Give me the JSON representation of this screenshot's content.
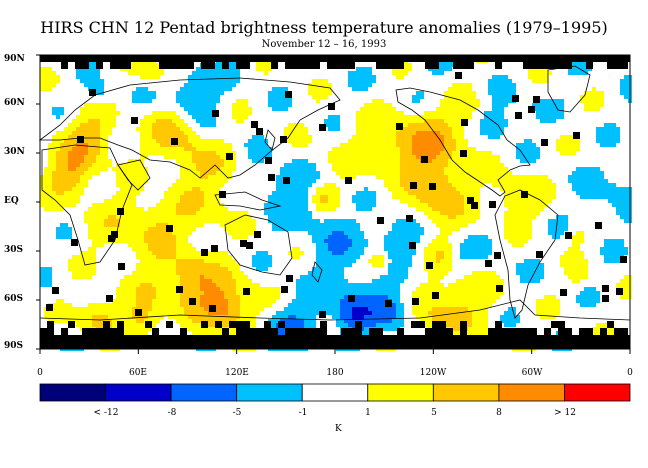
{
  "title": "HIRS CHN 12 Pentad brightness temperature anomalies (1979–1995)",
  "subtitle": "November 12 – 16, 1993",
  "lat_labels": [
    "90N",
    "60N",
    "30N",
    "EQ",
    "30S",
    "60S",
    "90S"
  ],
  "lon_labels": [
    "0",
    "60E",
    "120E",
    "180",
    "120W",
    "60W",
    "0"
  ],
  "colorbar": {
    "colors": [
      "#00007a",
      "#0000c8",
      "#0064ff",
      "#00c0ff",
      "#ffffff",
      "#ffff00",
      "#ffc800",
      "#ff8c00",
      "#ff0000"
    ],
    "labels": [
      "< -12",
      "-8",
      "-5",
      "-1",
      "1",
      "5",
      "8",
      "> 12"
    ],
    "unit": "K"
  }
}
